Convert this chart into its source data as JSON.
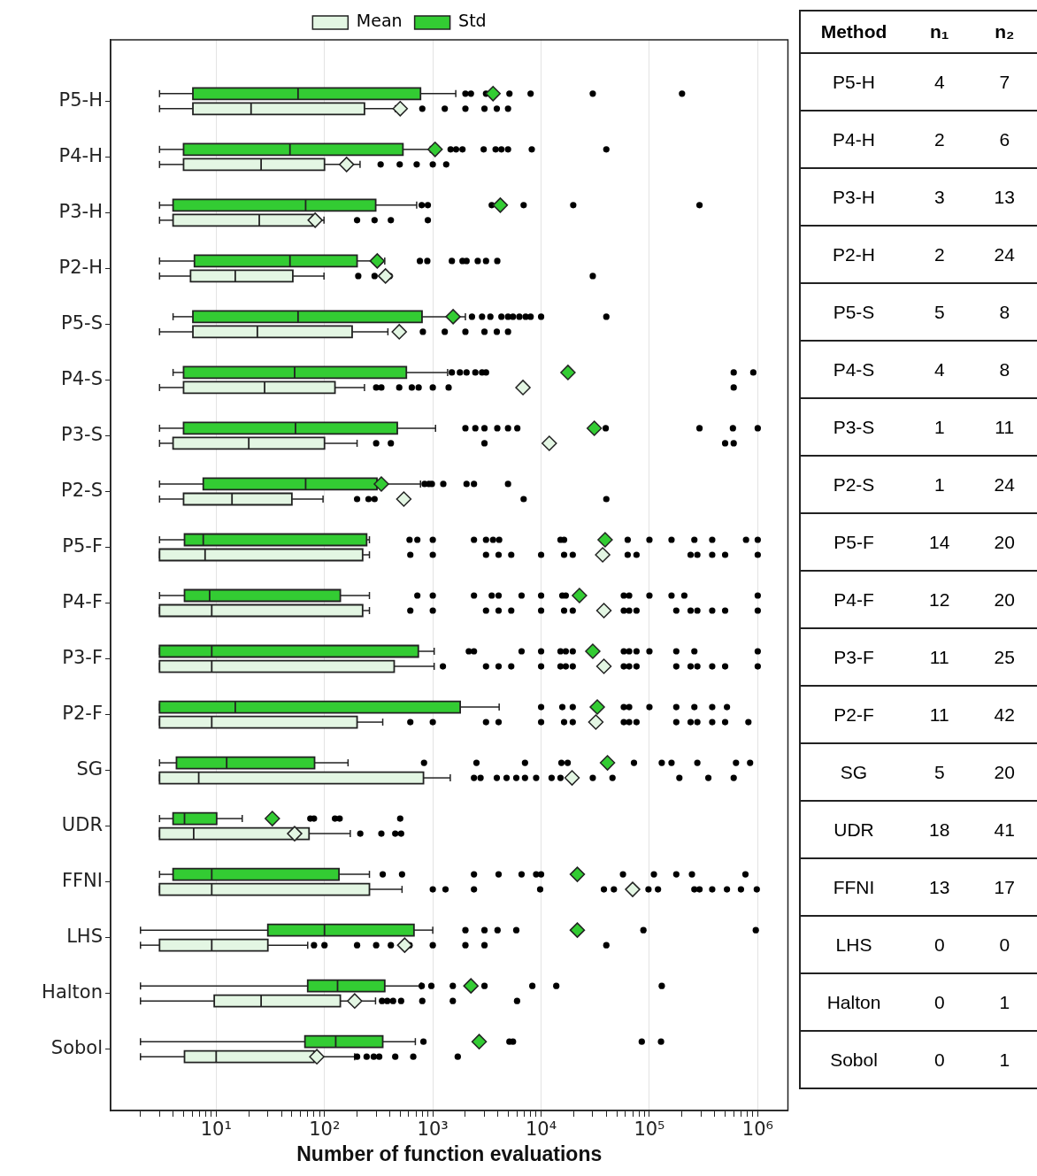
{
  "chart_data": [
    {
      "type": "box",
      "orientation": "horizontal",
      "log": "x",
      "grid": "x",
      "legend": "top",
      "xlabel": "Number of function evaluations",
      "categories": [
        "P5-H",
        "P4-H",
        "P3-H",
        "P2-H",
        "P5-S",
        "P4-S",
        "P3-S",
        "P2-S",
        "P5-F",
        "P4-F",
        "P3-F",
        "P2-F",
        "SG",
        "UDR",
        "FFNI",
        "LHS",
        "Halton",
        "Sobol"
      ],
      "xlim": [
        1.06,
        1900000
      ],
      "xticks": [
        {
          "value": 2,
          "label": null
        },
        {
          "value": 3,
          "label": null
        },
        {
          "value": 4,
          "label": null
        },
        {
          "value": 5,
          "label": null
        },
        {
          "value": 6,
          "label": null
        },
        {
          "value": 7,
          "label": null
        },
        {
          "value": 8,
          "label": null
        },
        {
          "value": 9,
          "label": null
        },
        {
          "value": 10,
          "label": "10¹"
        },
        {
          "value": 20,
          "label": null
        },
        {
          "value": 30,
          "label": null
        },
        {
          "value": 40,
          "label": null
        },
        {
          "value": 50,
          "label": null
        },
        {
          "value": 60,
          "label": null
        },
        {
          "value": 70,
          "label": null
        },
        {
          "value": 80,
          "label": null
        },
        {
          "value": 90,
          "label": null
        },
        {
          "value": 100,
          "label": "10²"
        },
        {
          "value": 200,
          "label": null
        },
        {
          "value": 300,
          "label": null
        },
        {
          "value": 400,
          "label": null
        },
        {
          "value": 500,
          "label": null
        },
        {
          "value": 600,
          "label": null
        },
        {
          "value": 700,
          "label": null
        },
        {
          "value": 800,
          "label": null
        },
        {
          "value": 900,
          "label": null
        },
        {
          "value": 1000,
          "label": "10³"
        },
        {
          "value": 2000,
          "label": null
        },
        {
          "value": 3000,
          "label": null
        },
        {
          "value": 4000,
          "label": null
        },
        {
          "value": 5000,
          "label": null
        },
        {
          "value": 6000,
          "label": null
        },
        {
          "value": 7000,
          "label": null
        },
        {
          "value": 8000,
          "label": null
        },
        {
          "value": 9000,
          "label": null
        },
        {
          "value": 10000,
          "label": "10⁴"
        },
        {
          "value": 20000,
          "label": null
        },
        {
          "value": 30000,
          "label": null
        },
        {
          "value": 40000,
          "label": null
        },
        {
          "value": 50000,
          "label": null
        },
        {
          "value": 60000,
          "label": null
        },
        {
          "value": 70000,
          "label": null
        },
        {
          "value": 80000,
          "label": null
        },
        {
          "value": 90000,
          "label": null
        },
        {
          "value": 100000,
          "label": "10⁵"
        },
        {
          "value": 200000,
          "label": null
        },
        {
          "value": 300000,
          "label": null
        },
        {
          "value": 400000,
          "label": null
        },
        {
          "value": 500000,
          "label": null
        },
        {
          "value": 600000,
          "label": null
        },
        {
          "value": 700000,
          "label": null
        },
        {
          "value": 800000,
          "label": null
        },
        {
          "value": 900000,
          "label": null
        },
        {
          "value": 1000000,
          "label": "10⁶"
        }
      ],
      "series": [
        {
          "name": "Mean",
          "color": "#e3f6e3",
          "boxes": [
            {
              "low": 3,
              "q1": 6.1,
              "median": 21,
              "q3": 234,
              "high": 450,
              "mean": 500,
              "outliers": [
                800,
                1290,
                2000,
                3000,
                3900,
                4950
              ]
            },
            {
              "low": 3,
              "q1": 5,
              "median": 26,
              "q3": 100,
              "high": 213,
              "mean": 160,
              "outliers": [
                330,
                495,
                710,
                1000,
                1330
              ]
            },
            {
              "low": 3,
              "q1": 4,
              "median": 25,
              "q3": 78,
              "high": 99,
              "mean": 82,
              "outliers": [
                200,
                290,
                410,
                900
              ]
            },
            {
              "low": 3,
              "q1": 5.8,
              "median": 15,
              "q3": 51,
              "high": 99,
              "mean": 366,
              "outliers": [
                205,
                290,
                400,
                30000
              ]
            },
            {
              "low": 3,
              "q1": 6.1,
              "median": 24,
              "q3": 180,
              "high": 385,
              "mean": 490,
              "outliers": [
                810,
                1290,
                2000,
                3000,
                3900,
                4950
              ]
            },
            {
              "low": 3,
              "q1": 5,
              "median": 28,
              "q3": 125,
              "high": 234,
              "mean": 6800,
              "outliers": [
                300,
                335,
                490,
                640,
                740,
                1000,
                1400,
                600000
              ]
            },
            {
              "low": 3,
              "q1": 4,
              "median": 20,
              "q3": 100,
              "high": 200,
              "mean": 11900,
              "outliers": [
                300,
                410,
                3000,
                500000,
                600000
              ]
            },
            {
              "low": 3,
              "q1": 5,
              "median": 14,
              "q3": 50,
              "high": 97,
              "mean": 540,
              "outliers": [
                200,
                255,
                290,
                6900,
                40000
              ]
            },
            {
              "low": 3,
              "q1": 3,
              "median": 7.9,
              "q3": 225,
              "high": 260,
              "mean": 37000,
              "outliers": [
                620,
                1000,
                3100,
                4050,
                5300,
                10000,
                16300,
                19600,
                63000,
                76000,
                240000,
                277000,
                380000,
                500000,
                1000000
              ]
            },
            {
              "low": 3,
              "q1": 3,
              "median": 9.1,
              "q3": 225,
              "high": 260,
              "mean": 38000,
              "outliers": [
                620,
                1000,
                3100,
                4050,
                5300,
                10000,
                16300,
                19600,
                58000,
                65000,
                76000,
                177000,
                240000,
                277000,
                380000,
                500000,
                1000000
              ]
            },
            {
              "low": 3,
              "q1": 3,
              "median": 9.1,
              "q3": 440,
              "high": 1030,
              "mean": 38000,
              "outliers": [
                1240,
                3100,
                4050,
                5300,
                10000,
                15100,
                16900,
                19600,
                58000,
                65000,
                76000,
                177000,
                240000,
                277000,
                380000,
                500000,
                1000000
              ]
            },
            {
              "low": 3,
              "q1": 3,
              "median": 9.1,
              "q3": 200,
              "high": 345,
              "mean": 32000,
              "outliers": [
                620,
                1000,
                3100,
                4050,
                10000,
                16300,
                19600,
                58000,
                65000,
                76000,
                177000,
                240000,
                277000,
                380000,
                500000,
                820000
              ]
            },
            {
              "low": 3,
              "q1": 3,
              "median": 6.9,
              "q3": 820,
              "high": 1450,
              "mean": 19300,
              "outliers": [
                2400,
                2760,
                3900,
                4800,
                5900,
                7100,
                9000,
                12500,
                15100,
                30000,
                45600,
                189000,
                350000,
                600000
              ]
            },
            {
              "low": 3,
              "q1": 3,
              "median": 6.2,
              "q3": 72,
              "high": 173,
              "mean": 53,
              "outliers": [
                214,
                335,
                450,
                510
              ]
            },
            {
              "low": 3,
              "q1": 3,
              "median": 9.1,
              "q3": 260,
              "high": 520,
              "mean": 70000,
              "outliers": [
                1000,
                1310,
                2400,
                9800,
                38000,
                47000,
                98000,
                120000,
                260000,
                290000,
                380000,
                520000,
                700000,
                980000
              ]
            },
            {
              "low": 2,
              "q1": 3,
              "median": 9.1,
              "q3": 30,
              "high": 70,
              "mean": 550,
              "outliers": [
                80,
                100,
                200,
                300,
                410,
                610,
                1000,
                2000,
                3000,
                40000
              ]
            },
            {
              "low": 2,
              "q1": 9.6,
              "median": 26,
              "q3": 140,
              "high": 296,
              "mean": 190,
              "outliers": [
                340,
                380,
                430,
                510,
                800,
                1530,
                6000
              ]
            },
            {
              "low": 2,
              "q1": 5.1,
              "median": 10,
              "q3": 80,
              "high": 190,
              "mean": 85,
              "outliers": [
                200,
                245,
                285,
                320,
                450,
                660,
                1700
              ]
            }
          ]
        },
        {
          "name": "Std",
          "color": "#33cc33",
          "boxes": [
            {
              "low": 3,
              "q1": 6.1,
              "median": 57,
              "q3": 770,
              "high": 1630,
              "mean": 3600,
              "outliers": [
                2000,
                2250,
                3100,
                5100,
                8000,
                30000,
                200000
              ]
            },
            {
              "low": 3,
              "q1": 5,
              "median": 48,
              "q3": 530,
              "high": 950,
              "mean": 1050,
              "outliers": [
                1460,
                1640,
                1880,
                2950,
                3800,
                4300,
                4950,
                8200,
                40000
              ]
            },
            {
              "low": 3,
              "q1": 4,
              "median": 67,
              "q3": 297,
              "high": 710,
              "mean": 4200,
              "outliers": [
                790,
                900,
                3500,
                6900,
                19800,
                290000
              ]
            },
            {
              "low": 3,
              "q1": 6.3,
              "median": 48,
              "q3": 200,
              "high": 360,
              "mean": 307,
              "outliers": [
                760,
                890,
                1500,
                1880,
                2050,
                2600,
                3100,
                3940
              ]
            },
            {
              "low": 4,
              "q1": 6.1,
              "median": 57,
              "q3": 795,
              "high": 2000,
              "mean": 1540,
              "outliers": [
                2300,
                2850,
                3400,
                4300,
                4950,
                5500,
                6300,
                7200,
                8000,
                10000,
                40000
              ]
            },
            {
              "low": 4,
              "q1": 5,
              "median": 53,
              "q3": 570,
              "high": 1370,
              "mean": 17700,
              "outliers": [
                1500,
                1780,
                2050,
                2470,
                2850,
                3100,
                600000,
                910000
              ]
            },
            {
              "low": 3,
              "q1": 5,
              "median": 54,
              "q3": 470,
              "high": 1060,
              "mean": 31000,
              "outliers": [
                2000,
                2470,
                3000,
                3940,
                4950,
                6030,
                39500,
                290000,
                590000,
                1000000
              ]
            },
            {
              "low": 3,
              "q1": 7.6,
              "median": 67,
              "q3": 305,
              "high": 770,
              "mean": 335,
              "outliers": [
                840,
                920,
                980,
                1250,
                2050,
                2400,
                4950
              ]
            },
            {
              "low": 3,
              "q1": 5.1,
              "median": 7.6,
              "q3": 245,
              "high": 260,
              "mean": 39000,
              "outliers": [
                610,
                720,
                1000,
                2400,
                3100,
                3600,
                4100,
                15100,
                16300,
                63000,
                100000,
                160000,
                260000,
                380000,
                780000,
                1000000
              ]
            },
            {
              "low": 3,
              "q1": 5.1,
              "median": 8.7,
              "q3": 140,
              "high": 260,
              "mean": 22600,
              "outliers": [
                720,
                1000,
                2400,
                3500,
                4050,
                6600,
                10000,
                15700,
                16900,
                58000,
                65000,
                100000,
                160000,
                210000,
                1000000
              ]
            },
            {
              "low": 3,
              "q1": 3,
              "median": 9.1,
              "q3": 735,
              "high": 1030,
              "mean": 30000,
              "outliers": [
                2150,
                2400,
                6600,
                10000,
                15100,
                16900,
                19600,
                58000,
                65000,
                76000,
                100000,
                177000,
                260000,
                1000000
              ]
            },
            {
              "low": 3,
              "q1": 3,
              "median": 15,
              "q3": 1790,
              "high": 4100,
              "mean": 33000,
              "outliers": [
                10000,
                15700,
                19600,
                58000,
                65000,
                100000,
                177000,
                260000,
                380000,
                520000
              ]
            },
            {
              "low": 3,
              "q1": 4.3,
              "median": 12.5,
              "q3": 81,
              "high": 165,
              "mean": 41000,
              "outliers": [
                830,
                2530,
                7100,
                15400,
                17600,
                72000,
                130000,
                160000,
                277000,
                630000,
                850000
              ]
            },
            {
              "low": 3,
              "q1": 4,
              "median": 5.1,
              "q3": 10.1,
              "high": 17.4,
              "mean": 33,
              "outliers": [
                74,
                80,
                125,
                138,
                500
              ]
            },
            {
              "low": 3,
              "q1": 4,
              "median": 9.1,
              "q3": 136,
              "high": 260,
              "mean": 21600,
              "outliers": [
                345,
                520,
                2400,
                4050,
                6600,
                9000,
                10000,
                57000,
                110000,
                177000,
                247000,
                770000
              ]
            },
            {
              "low": 2,
              "q1": 30,
              "median": 100,
              "q3": 670,
              "high": 1000,
              "mean": 21600,
              "outliers": [
                2000,
                3000,
                3960,
                5900,
                88000,
                960000
              ]
            },
            {
              "low": 2,
              "q1": 70,
              "median": 132,
              "q3": 360,
              "high": 780,
              "mean": 2250,
              "outliers": [
                790,
                970,
                1530,
                3000,
                8300,
                13800,
                130000
              ]
            },
            {
              "low": 2,
              "q1": 66,
              "median": 127,
              "q3": 345,
              "high": 690,
              "mean": 2680,
              "outliers": [
                820,
                5100,
                5500,
                85000,
                128000
              ]
            }
          ]
        }
      ]
    },
    {
      "type": "other",
      "xlabel": "Method",
      "data_labels": true,
      "categories": [
        "P5-H",
        "P4-H",
        "P3-H",
        "P2-H",
        "P5-S",
        "P4-S",
        "P3-S",
        "P2-S",
        "P5-F",
        "P4-F",
        "P3-F",
        "P2-F",
        "SG",
        "UDR",
        "FFNI",
        "LHS",
        "Halton",
        "Sobol"
      ],
      "series": [
        {
          "name": "n₁",
          "values": [
            4,
            2,
            3,
            2,
            5,
            4,
            1,
            1,
            14,
            12,
            11,
            11,
            5,
            18,
            13,
            0,
            0,
            0
          ]
        },
        {
          "name": "n₂",
          "values": [
            7,
            6,
            13,
            24,
            8,
            8,
            11,
            24,
            20,
            20,
            25,
            42,
            20,
            41,
            17,
            0,
            1,
            1
          ]
        }
      ]
    }
  ]
}
